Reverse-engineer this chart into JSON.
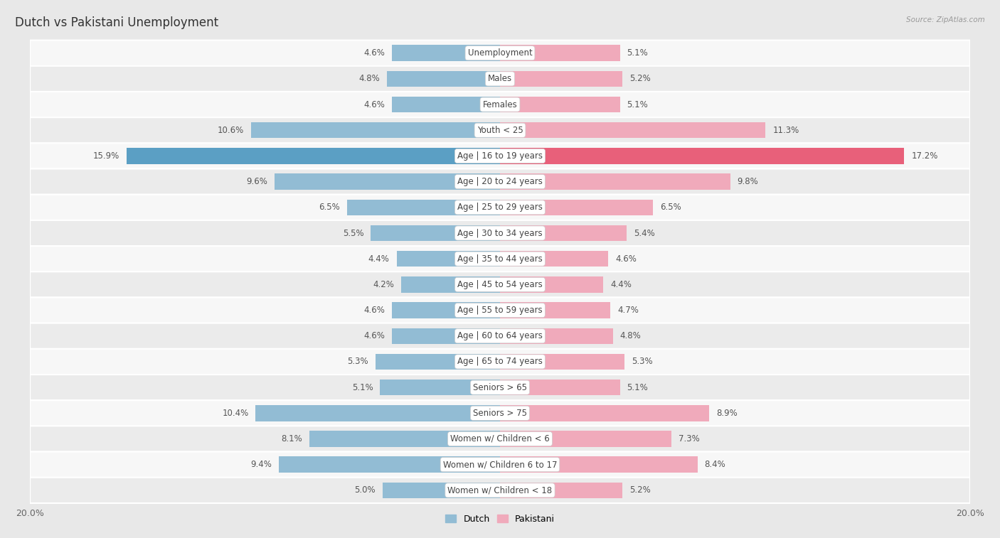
{
  "title": "Dutch vs Pakistani Unemployment",
  "source": "Source: ZipAtlas.com",
  "categories": [
    "Unemployment",
    "Males",
    "Females",
    "Youth < 25",
    "Age | 16 to 19 years",
    "Age | 20 to 24 years",
    "Age | 25 to 29 years",
    "Age | 30 to 34 years",
    "Age | 35 to 44 years",
    "Age | 45 to 54 years",
    "Age | 55 to 59 years",
    "Age | 60 to 64 years",
    "Age | 65 to 74 years",
    "Seniors > 65",
    "Seniors > 75",
    "Women w/ Children < 6",
    "Women w/ Children 6 to 17",
    "Women w/ Children < 18"
  ],
  "dutch": [
    4.6,
    4.8,
    4.6,
    10.6,
    15.9,
    9.6,
    6.5,
    5.5,
    4.4,
    4.2,
    4.6,
    4.6,
    5.3,
    5.1,
    10.4,
    8.1,
    9.4,
    5.0
  ],
  "pakistani": [
    5.1,
    5.2,
    5.1,
    11.3,
    17.2,
    9.8,
    6.5,
    5.4,
    4.6,
    4.4,
    4.7,
    4.8,
    5.3,
    5.1,
    8.9,
    7.3,
    8.4,
    5.2
  ],
  "dutch_color": "#92bcd4",
  "dutch_highlight_color": "#5b9fc4",
  "pakistani_color": "#f0aabb",
  "pakistani_highlight_color": "#e8607a",
  "bg_outer": "#e8e8e8",
  "row_bg_white": "#f7f7f7",
  "row_bg_gray": "#ebebeb",
  "axis_max": 20.0,
  "bar_height": 0.62,
  "title_fontsize": 12,
  "label_fontsize": 8.5,
  "tick_fontsize": 9,
  "value_fontsize": 8.5
}
